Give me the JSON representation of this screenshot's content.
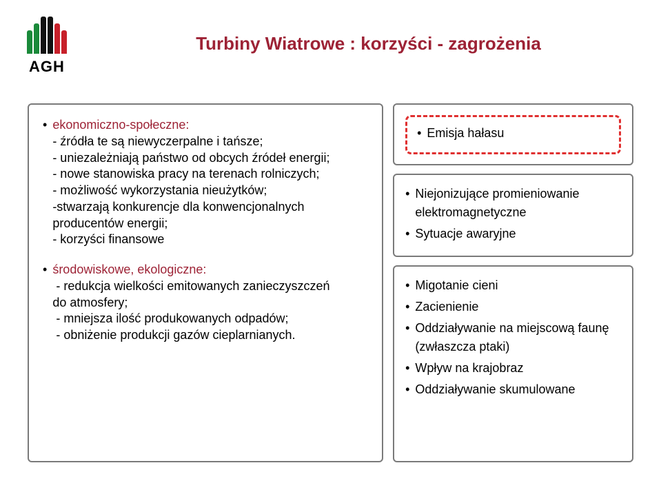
{
  "logo": {
    "text": "AGH",
    "stripes": [
      {
        "color": "#1a8a3a",
        "height": 34
      },
      {
        "color": "#1a8a3a",
        "height": 44
      },
      {
        "color": "#111111",
        "height": 54
      },
      {
        "color": "#111111",
        "height": 54
      },
      {
        "color": "#c7202a",
        "height": 44
      },
      {
        "color": "#c7202a",
        "height": 34
      }
    ]
  },
  "title": "Turbiny Wiatrowe : korzyści  - zagrożenia",
  "left": {
    "block1": {
      "heading": "ekonomiczno-społeczne:",
      "lines": [
        "- źródła te są niewyczerpalne i tańsze;",
        "- uniezależniają państwo od obcych źródeł energii;",
        "- nowe stanowiska pracy na terenach rolniczych;",
        "- możliwość wykorzystania nieużytków;",
        "-stwarzają konkurencje dla konwencjonalnych producentów energii;",
        "- korzyści finansowe"
      ]
    },
    "block2": {
      "heading": "środowiskowe, ekologiczne:",
      "lines": [
        "- redukcja wielkości emitowanych zanieczyszczeń           do atmosfery;",
        "- mniejsza ilość produkowanych odpadów;",
        "- obniżenie produkcji gazów cieplarnianych."
      ]
    }
  },
  "right": {
    "top": "Emisja hałasu",
    "mid": [
      "Niejonizujące promieniowanie elektromagnetyczne",
      "Sytuacje awaryjne"
    ],
    "bot": [
      "Migotanie cieni",
      "Zacienienie",
      "Oddziaływanie na miejscową faunę (zwłaszcza ptaki)",
      "Wpływ na krajobraz",
      "Oddziaływanie skumulowane"
    ]
  },
  "colors": {
    "title": "#9d2235",
    "border": "#7a7a7a",
    "dashed": "#e03030"
  }
}
